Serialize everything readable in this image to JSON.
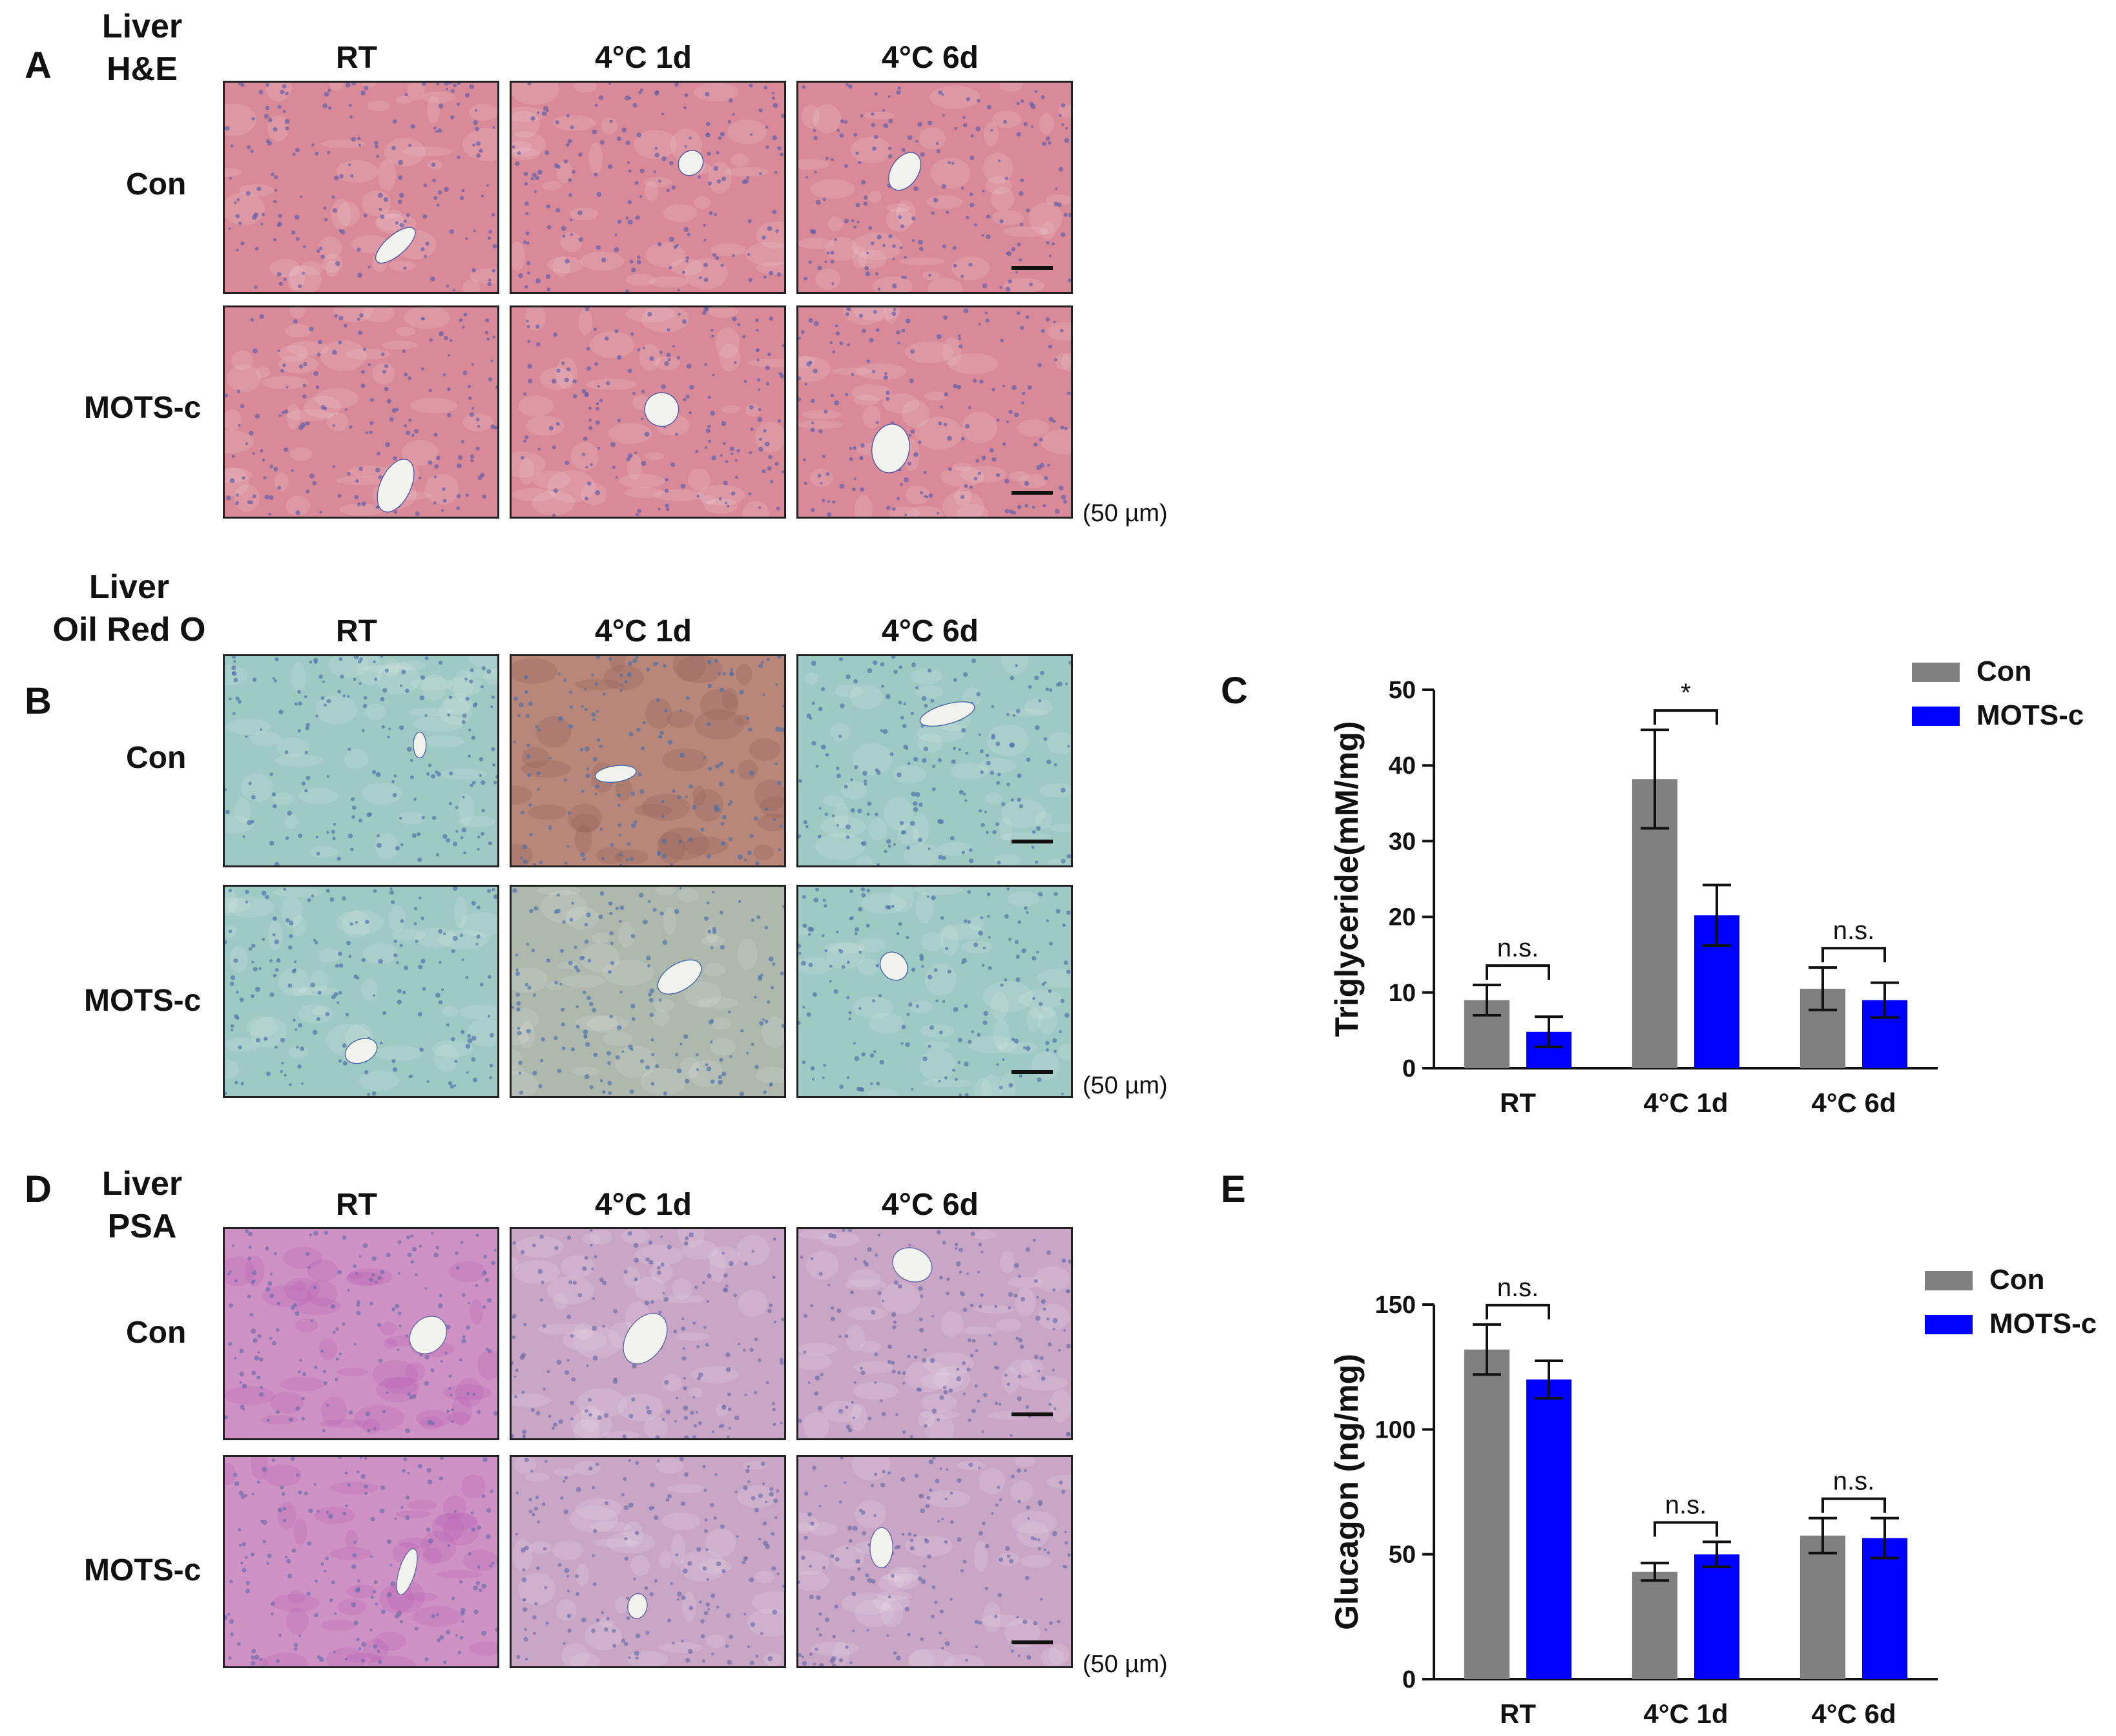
{
  "panels": {
    "A": {
      "letter": "A",
      "title_lines": [
        "Liver",
        "H&E"
      ],
      "columns": [
        "RT",
        "4°C 1d",
        "4°C 6d"
      ],
      "rows": [
        "Con",
        "MOTS-c"
      ],
      "scale_text": "(50 µm)",
      "stain_color": "#d98a98",
      "nuclei_color": "#5a5aa8"
    },
    "B": {
      "letter": "B",
      "title_lines": [
        "Liver",
        "Oil Red O"
      ],
      "columns": [
        "RT",
        "4°C 1d",
        "4°C 6d"
      ],
      "rows": [
        "Con",
        "MOTS-c"
      ],
      "scale_text": "(50 µm)",
      "stain_color": "#9fc9c3",
      "nuclei_color": "#4a6ea8"
    },
    "D": {
      "letter": "D",
      "title_lines": [
        "Liver",
        "PSA"
      ],
      "columns": [
        "RT",
        "4°C 1d",
        "4°C 6d"
      ],
      "rows": [
        "Con",
        "MOTS-c"
      ],
      "scale_text": "(50 µm)",
      "stain_color": "#c9a6c6",
      "nuclei_color": "#6a6aa8"
    },
    "C": {
      "letter": "C"
    },
    "E": {
      "letter": "E"
    }
  },
  "chart_data": [
    {
      "type": "bar",
      "panel": "C",
      "categories": [
        "RT",
        "4°C 1d",
        "4°C 6d"
      ],
      "series": [
        {
          "name": "Con",
          "color": "#808080",
          "values": [
            9.0,
            38.2,
            10.5
          ],
          "errors": [
            2.0,
            6.5,
            2.8
          ]
        },
        {
          "name": "MOTS-c",
          "color": "#0000ff",
          "values": [
            4.8,
            20.2,
            9.0
          ],
          "errors": [
            2.0,
            4.0,
            2.3
          ]
        }
      ],
      "ylabel": "Triglyceride(mM/mg)",
      "ylim": [
        0,
        50
      ],
      "yticks": [
        0,
        10,
        20,
        30,
        40,
        50
      ],
      "annotations": [
        "n.s.",
        "*",
        "n.s."
      ],
      "legend": "top-right"
    },
    {
      "type": "bar",
      "panel": "E",
      "categories": [
        "RT",
        "4°C 1d",
        "4°C 6d"
      ],
      "series": [
        {
          "name": "Con",
          "color": "#808080",
          "values": [
            132,
            43,
            57.5
          ],
          "errors": [
            10,
            3.5,
            7
          ]
        },
        {
          "name": "MOTS-c",
          "color": "#0000ff",
          "values": [
            120,
            50,
            56.5
          ],
          "errors": [
            7.5,
            5,
            8
          ]
        }
      ],
      "ylabel": "Glucagon (ng/mg)",
      "ylim": [
        0,
        150
      ],
      "yticks": [
        0,
        50,
        100,
        150
      ],
      "annotations": [
        "n.s.",
        "n.s.",
        "n.s."
      ],
      "legend": "top-right"
    }
  ]
}
